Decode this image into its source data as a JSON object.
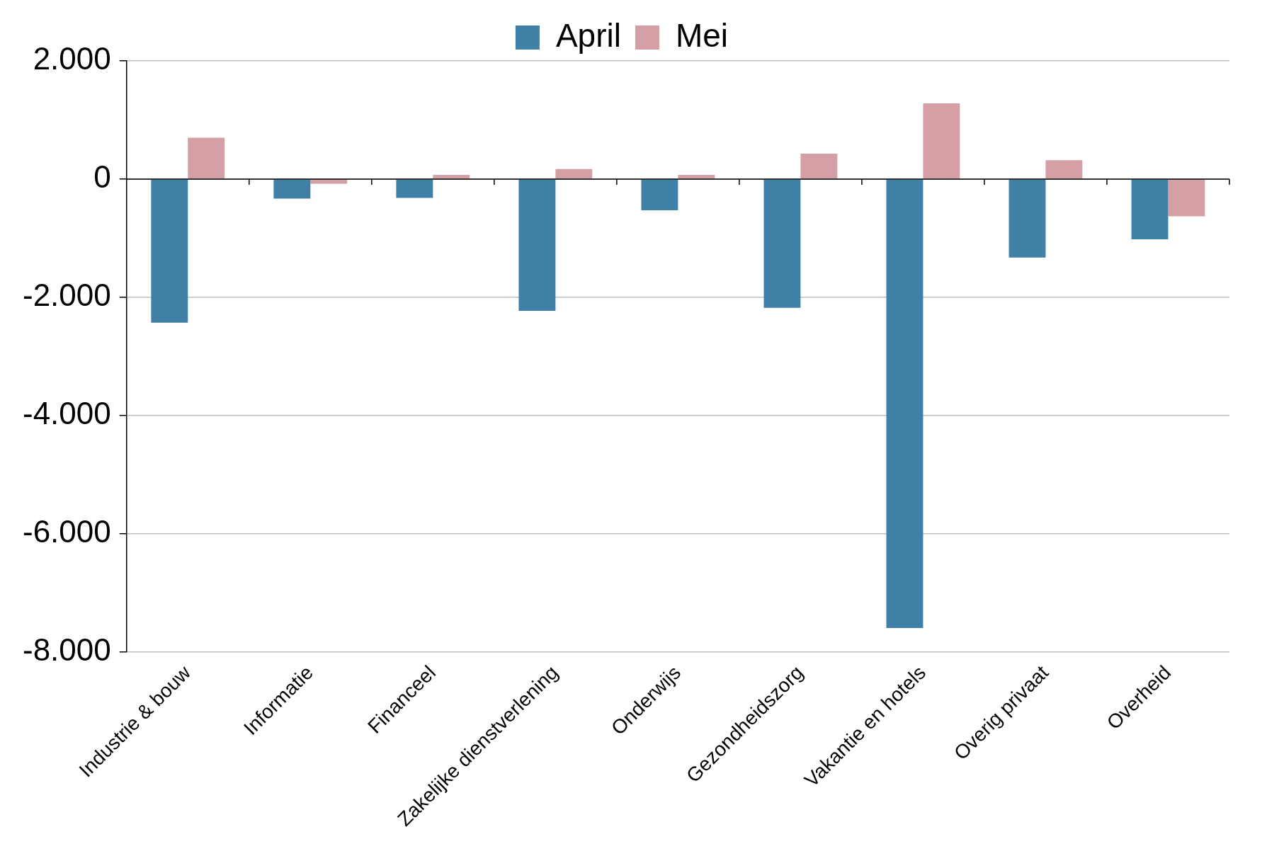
{
  "chart_data": {
    "type": "bar",
    "categories": [
      "Industrie & bouw",
      "Informatie",
      "Financeel",
      "Zakelijke dienstverlening",
      "Onderwijs",
      "Gezondheidszorg",
      "Vakantie en hotels",
      "Overig privaat",
      "Overheid"
    ],
    "series": [
      {
        "name": "April",
        "color": "#4180a6",
        "values": [
          -2430,
          -330,
          -320,
          -2230,
          -530,
          -2180,
          -7600,
          -1330,
          -1020
        ]
      },
      {
        "name": "Mei",
        "color": "#d4a0a5",
        "values": [
          700,
          -80,
          70,
          170,
          70,
          430,
          1280,
          320,
          -630
        ]
      }
    ],
    "ylim": [
      -8000,
      2000
    ],
    "yticks": [
      {
        "value": -8000,
        "label": "-8.000"
      },
      {
        "value": -6000,
        "label": "-6.000"
      },
      {
        "value": -4000,
        "label": "-4.000"
      },
      {
        "value": -2000,
        "label": "-2.000"
      },
      0,
      {
        "value": 2000,
        "label": "2.000"
      }
    ],
    "grid": "y",
    "legend": "top"
  }
}
